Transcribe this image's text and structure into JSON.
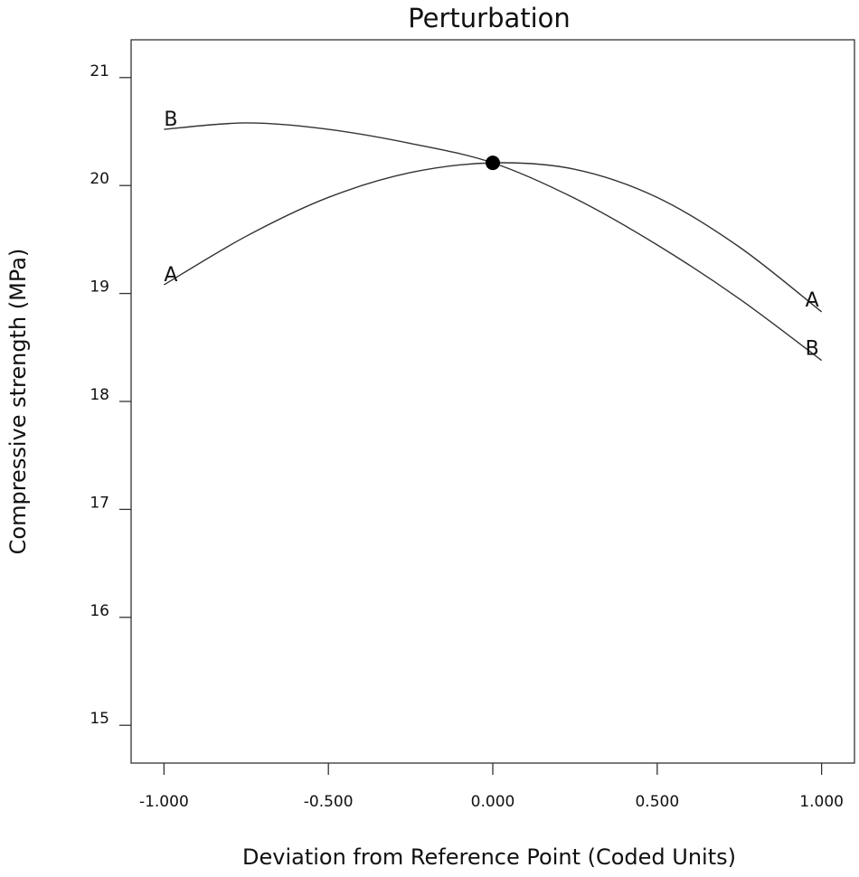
{
  "chart_data": {
    "type": "line",
    "title": "Perturbation",
    "xlabel": "Deviation from Reference Point (Coded Units)",
    "ylabel": "Compressive strength (MPa)",
    "xlim": [
      -1.1,
      1.1
    ],
    "ylim": [
      14.65,
      21.35
    ],
    "x_ticks": [
      -1,
      -0.5,
      0,
      0.5,
      1
    ],
    "x_tick_labels": [
      "-1.000",
      "-0.500",
      "0.000",
      "0.500",
      "1.000"
    ],
    "y_ticks": [
      15,
      16,
      17,
      18,
      19,
      20,
      21
    ],
    "y_tick_labels": [
      "15",
      "16",
      "17",
      "18",
      "19",
      "20",
      "21"
    ],
    "grid": false,
    "series": [
      {
        "name": "A",
        "x": [
          -1.0,
          -0.75,
          -0.5,
          -0.25,
          0.0,
          0.25,
          0.5,
          0.75,
          1.0
        ],
        "values": [
          19.08,
          19.53,
          19.89,
          20.12,
          20.21,
          20.15,
          19.89,
          19.43,
          18.83
        ]
      },
      {
        "name": "B",
        "x": [
          -1.0,
          -0.75,
          -0.5,
          -0.25,
          0.0,
          0.25,
          0.5,
          0.75,
          1.0
        ],
        "values": [
          20.52,
          20.58,
          20.52,
          20.39,
          20.21,
          19.88,
          19.45,
          18.95,
          18.38
        ]
      }
    ],
    "reference_point": {
      "x": 0.0,
      "y": 20.21
    }
  }
}
